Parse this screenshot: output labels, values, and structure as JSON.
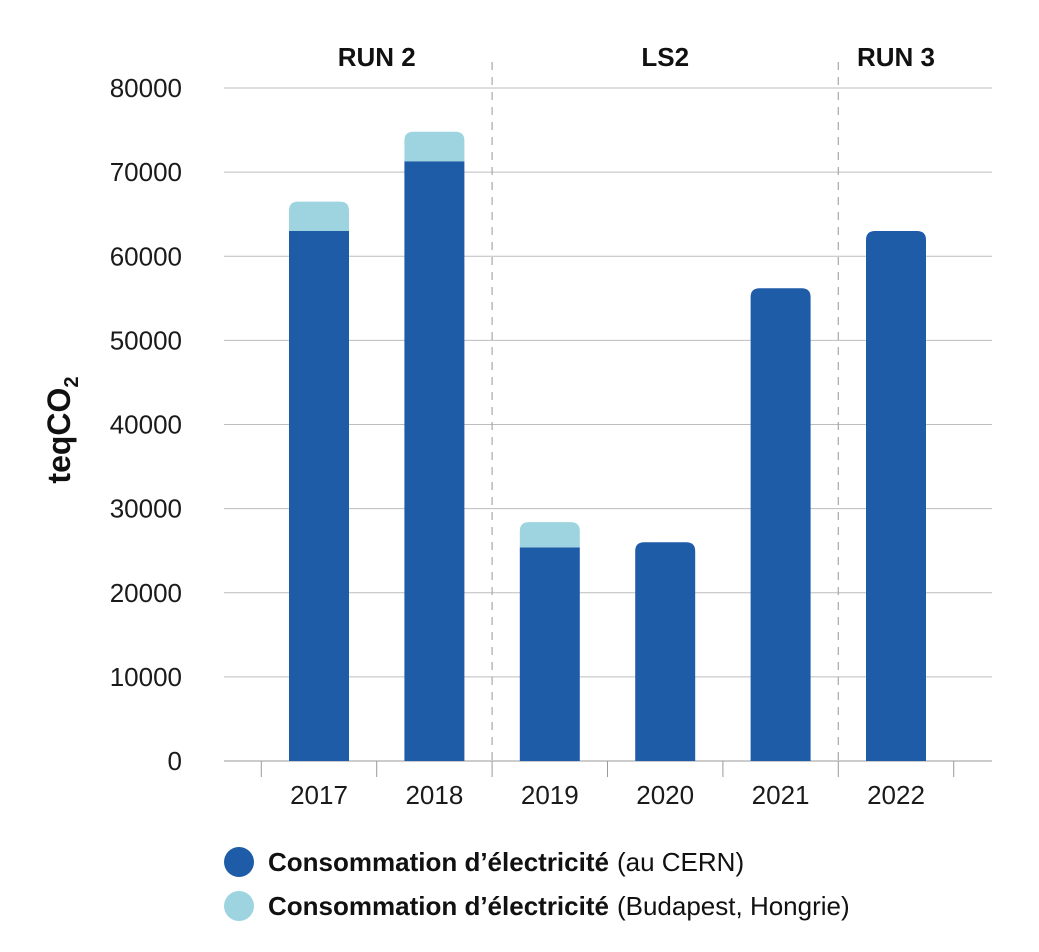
{
  "chart_data": {
    "type": "bar",
    "stacked": true,
    "categories": [
      "2017",
      "2018",
      "2019",
      "2020",
      "2021",
      "2022"
    ],
    "series": [
      {
        "name": "Consommation d’électricité",
        "detail": "(au CERN)",
        "color": "#1f5ca8",
        "values": [
          63000,
          71300,
          25400,
          26000,
          56200,
          63000
        ]
      },
      {
        "name": "Consommation d’électricité",
        "detail": "(Budapest, Hongrie)",
        "color": "#9dd4df",
        "values": [
          3500,
          3500,
          3000,
          0,
          0,
          0
        ]
      }
    ],
    "ylabel_main": "teqCO",
    "ylabel_sub": "2",
    "ylim": [
      0,
      80000
    ],
    "yticks": [
      "0",
      "10000",
      "20000",
      "30000",
      "40000",
      "50000",
      "60000",
      "70000",
      "80000"
    ],
    "periods": [
      {
        "label": "RUN 2",
        "from": 0,
        "to": 1
      },
      {
        "label": "LS2",
        "from": 2,
        "to": 4
      },
      {
        "label": "RUN 3",
        "from": 5,
        "to": 5
      }
    ],
    "grid": true,
    "legend_position": "bottom"
  }
}
